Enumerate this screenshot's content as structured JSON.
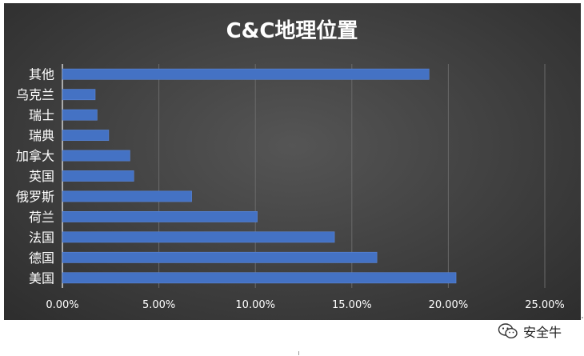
{
  "chart_data": {
    "type": "bar",
    "orientation": "horizontal",
    "title": "C&C地理位置",
    "categories": [
      "美国",
      "德国",
      "法国",
      "荷兰",
      "俄罗斯",
      "英国",
      "加拿大",
      "瑞典",
      "瑞士",
      "乌克兰",
      "其他"
    ],
    "values": [
      20.4,
      16.3,
      14.1,
      10.1,
      6.7,
      3.7,
      3.5,
      2.4,
      1.8,
      1.7,
      19.0
    ],
    "value_format": "percent",
    "xlim": [
      0,
      25
    ],
    "x_ticks": [
      "0.00%",
      "5.00%",
      "10.00%",
      "15.00%",
      "20.00%",
      "25.00%"
    ],
    "grid": "vertical",
    "legend": "none",
    "colors": {
      "bar": "#4472c4",
      "background": "#404040",
      "grid": "#6a6a6a",
      "text": "#ffffff"
    }
  },
  "watermark": {
    "icon": "wechat-icon",
    "text": "安全牛"
  }
}
